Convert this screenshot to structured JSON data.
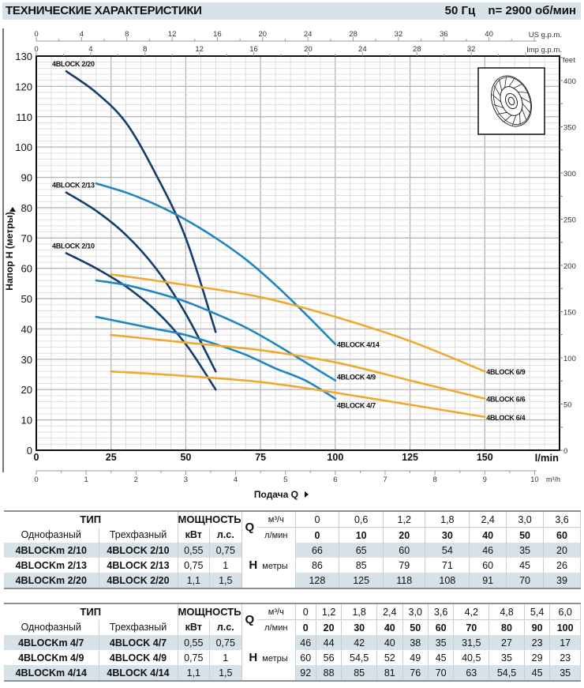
{
  "header": {
    "title": "ТЕХНИЧЕСКИЕ ХАРАКТЕРИСТИКИ",
    "frequency": "50 Гц",
    "speed": "n= 2900 об/мин"
  },
  "chart_data": {
    "type": "line",
    "title": "",
    "xlabel": "Подача Q",
    "ylabel": "Напор H (метры)",
    "x_unit": "l/min",
    "xlim": [
      0,
      175
    ],
    "ylim": [
      0,
      130
    ],
    "grid": true,
    "x_ticks": [
      0,
      25,
      50,
      75,
      100,
      125,
      150
    ],
    "y_ticks": [
      0,
      10,
      20,
      30,
      40,
      50,
      60,
      70,
      80,
      90,
      100,
      110,
      120,
      130
    ],
    "secondary_axes": {
      "m3h": {
        "label": "m³/h",
        "ticks": [
          0,
          1,
          2,
          3,
          4,
          5,
          6,
          7,
          8,
          9,
          10
        ]
      },
      "us_gpm": {
        "label": "US g.p.m.",
        "ticks": [
          0,
          4,
          8,
          12,
          16,
          20,
          24,
          28,
          32,
          36,
          40
        ]
      },
      "imp_gpm": {
        "label": "Imp g.p.m.",
        "ticks": [
          0,
          4,
          8,
          12,
          16,
          20,
          24,
          28,
          32
        ]
      },
      "feet": {
        "label": "feet",
        "ticks": [
          0,
          50,
          100,
          150,
          200,
          250,
          300,
          350,
          400
        ]
      }
    },
    "series": [
      {
        "name": "4BLOCK 2/20",
        "label": "4BLOCK 2/20",
        "color": "#143d6e",
        "x": [
          10,
          20,
          30,
          40,
          50,
          60
        ],
        "y": [
          125,
          118,
          108,
          91,
          70,
          39
        ]
      },
      {
        "name": "4BLOCK 2/13",
        "label": "4BLOCK 2/13",
        "color": "#143d6e",
        "x": [
          10,
          20,
          30,
          40,
          50,
          60
        ],
        "y": [
          85,
          79,
          71,
          60,
          45,
          26
        ]
      },
      {
        "name": "4BLOCK 2/10",
        "label": "4BLOCK 2/10",
        "color": "#143d6e",
        "x": [
          10,
          20,
          30,
          40,
          50,
          60
        ],
        "y": [
          65,
          60,
          54,
          46,
          35,
          20
        ]
      },
      {
        "name": "4BLOCK 4/14",
        "label": "4BLOCK 4/14",
        "color": "#1e86c2",
        "x": [
          20,
          30,
          40,
          50,
          60,
          70,
          80,
          90,
          100
        ],
        "y": [
          88,
          85,
          81,
          76,
          70,
          63,
          54.5,
          45,
          35
        ]
      },
      {
        "name": "4BLOCK 4/9",
        "label": "4BLOCK 4/9",
        "color": "#1e86c2",
        "x": [
          20,
          30,
          40,
          50,
          60,
          70,
          80,
          90,
          100
        ],
        "y": [
          56,
          54.5,
          52,
          49,
          45,
          40.5,
          35,
          29,
          23
        ]
      },
      {
        "name": "4BLOCK 4/7",
        "label": "4BLOCK 4/7",
        "color": "#1e86c2",
        "x": [
          20,
          30,
          40,
          50,
          60,
          70,
          80,
          90,
          100
        ],
        "y": [
          44,
          42,
          40,
          38,
          35,
          31.5,
          27,
          23,
          17
        ]
      },
      {
        "name": "4BLOCK 6/9",
        "label": "4BLOCK 6/9",
        "color": "#f0a830",
        "x": [
          25,
          50,
          75,
          100,
          125,
          150
        ],
        "y": [
          58,
          54.5,
          50.5,
          44,
          36,
          26
        ]
      },
      {
        "name": "4BLOCK 6/6",
        "label": "4BLOCK 6/6",
        "color": "#f0a830",
        "x": [
          25,
          50,
          75,
          100,
          125,
          150
        ],
        "y": [
          38,
          35.5,
          33,
          29,
          23,
          17
        ]
      },
      {
        "name": "4BLOCK 6/4",
        "label": "4BLOCK 6/4",
        "color": "#f0a830",
        "x": [
          25,
          50,
          75,
          100,
          125,
          150
        ],
        "y": [
          26,
          24.5,
          22.5,
          19,
          15,
          11
        ]
      }
    ]
  },
  "tables": [
    {
      "type_header": "ТИП",
      "power_header": "МОЩНОСТЬ",
      "col_single": "Однофазный",
      "col_three": "Трехфазный",
      "kw": "кВт",
      "hp": "л.с.",
      "q_symbol": "Q",
      "q_unit_m3h": "м³/ч",
      "q_unit_lmin": "л/мин",
      "h_symbol": "H",
      "h_unit": "метры",
      "m3h": [
        "0",
        "0,6",
        "1,2",
        "1,8",
        "2,4",
        "3,0",
        "3,6"
      ],
      "lmin": [
        "0",
        "10",
        "20",
        "30",
        "40",
        "50",
        "60"
      ],
      "rows": [
        {
          "single": "4BLOCKm 2/10",
          "three": "4BLOCK 2/10",
          "kw": "0,55",
          "hp": "0,75",
          "h": [
            "66",
            "65",
            "60",
            "54",
            "46",
            "35",
            "20"
          ]
        },
        {
          "single": "4BLOCKm 2/13",
          "three": "4BLOCK 2/13",
          "kw": "0,75",
          "hp": "1",
          "h": [
            "86",
            "85",
            "79",
            "71",
            "60",
            "45",
            "26"
          ]
        },
        {
          "single": "4BLOCKm 2/20",
          "three": "4BLOCK 2/20",
          "kw": "1,1",
          "hp": "1,5",
          "h": [
            "128",
            "125",
            "118",
            "108",
            "91",
            "70",
            "39"
          ]
        }
      ]
    },
    {
      "type_header": "ТИП",
      "power_header": "МОЩНОСТЬ",
      "col_single": "Однофазный",
      "col_three": "Трехфазный",
      "kw": "кВт",
      "hp": "л.с.",
      "q_symbol": "Q",
      "q_unit_m3h": "м³/ч",
      "q_unit_lmin": "л/мин",
      "h_symbol": "H",
      "h_unit": "метры",
      "m3h": [
        "0",
        "1,2",
        "1,8",
        "2,4",
        "3,0",
        "3,6",
        "4,2",
        "4,8",
        "5,4",
        "6,0"
      ],
      "lmin": [
        "0",
        "20",
        "30",
        "40",
        "50",
        "60",
        "70",
        "80",
        "90",
        "100"
      ],
      "rows": [
        {
          "single": "4BLOCKm 4/7",
          "three": "4BLOCK 4/7",
          "kw": "0,55",
          "hp": "0,75",
          "h": [
            "46",
            "44",
            "42",
            "40",
            "38",
            "35",
            "31,5",
            "27",
            "23",
            "17"
          ]
        },
        {
          "single": "4BLOCKm 4/9",
          "three": "4BLOCK 4/9",
          "kw": "0,75",
          "hp": "1",
          "h": [
            "60",
            "56",
            "54,5",
            "52",
            "49",
            "45",
            "40,5",
            "35",
            "29",
            "23"
          ]
        },
        {
          "single": "4BLOCKm 4/14",
          "three": "4BLOCK 4/14",
          "kw": "1,1",
          "hp": "1,5",
          "h": [
            "92",
            "88",
            "85",
            "81",
            "76",
            "70",
            "63",
            "54,5",
            "45",
            "35"
          ]
        }
      ]
    }
  ]
}
